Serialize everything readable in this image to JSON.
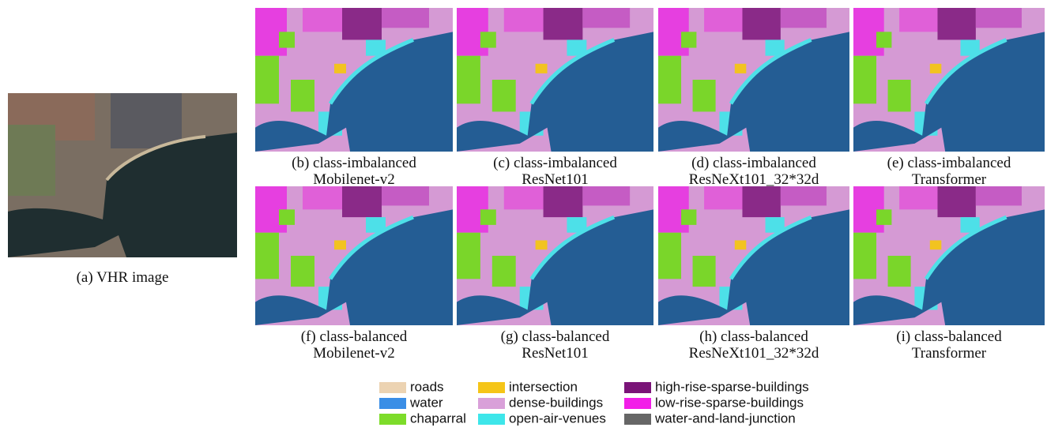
{
  "figure": {
    "source_panel": {
      "caption": "(a) VHR image"
    },
    "panels": [
      {
        "caption": [
          "(b) class-imbalanced",
          "Mobilenet-v2"
        ]
      },
      {
        "caption": [
          "(c) class-imbalanced",
          "ResNet101"
        ]
      },
      {
        "caption": [
          "(d) class-imbalanced",
          "ResNeXt101_32*32d"
        ]
      },
      {
        "caption": [
          "(e) class-imbalanced",
          "Transformer"
        ]
      },
      {
        "caption": [
          "(f) class-balanced",
          "Mobilenet-v2"
        ]
      },
      {
        "caption": [
          "(g) class-balanced",
          "ResNet101"
        ]
      },
      {
        "caption": [
          "(h) class-balanced",
          "ResNeXt101_32*32d"
        ]
      },
      {
        "caption": [
          "(i) class-balanced",
          "Transformer"
        ]
      }
    ],
    "legend": [
      {
        "label": "roads",
        "color": "#ecd3b2"
      },
      {
        "label": "water",
        "color": "#3a8ee6"
      },
      {
        "label": "chaparral",
        "color": "#7ddc2a"
      },
      {
        "label": "intersection",
        "color": "#f5c518"
      },
      {
        "label": "dense-buildings",
        "color": "#d9a0d9"
      },
      {
        "label": "open-air-venues",
        "color": "#3ee6ea"
      },
      {
        "label": "high-rise-sparse-buildings",
        "color": "#7a1478"
      },
      {
        "label": "low-rise-sparse-buildings",
        "color": "#f21ee8"
      },
      {
        "label": "water-and-land-junction",
        "color": "#666666"
      }
    ]
  }
}
